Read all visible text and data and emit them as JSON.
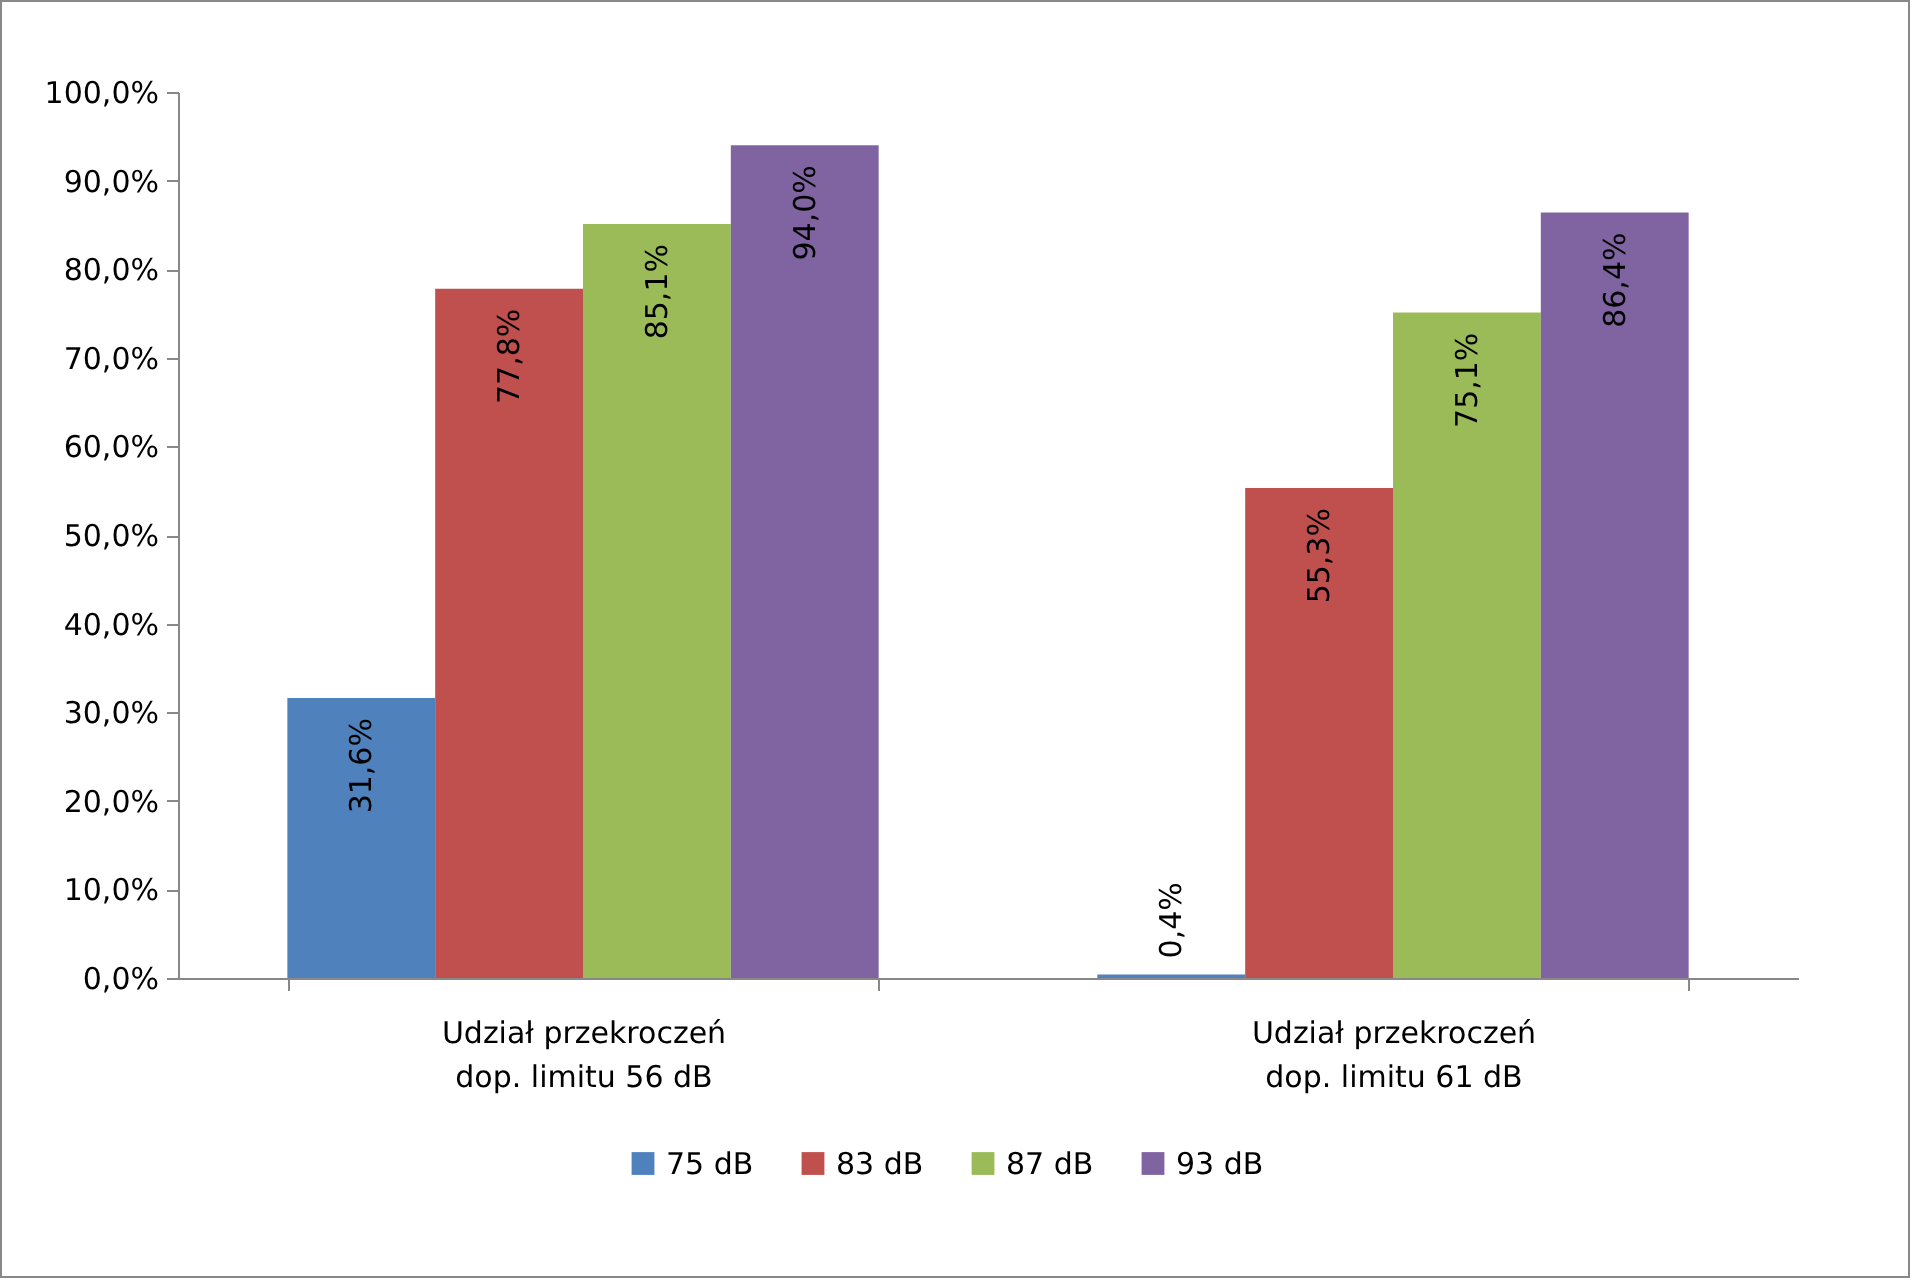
{
  "chart_data": {
    "type": "bar",
    "categories": [
      "Udział przekroczeń\ndop. limitu 56 dB",
      "Udział przekroczeń\ndop. limitu 61 dB"
    ],
    "series": [
      {
        "name": "75 dB",
        "color": "#4f81bd",
        "values": [
          31.6,
          0.4
        ],
        "value_labels": [
          "31,6%",
          "0,4%"
        ]
      },
      {
        "name": "83 dB",
        "color": "#c0504d",
        "values": [
          77.8,
          55.3
        ],
        "value_labels": [
          "77,8%",
          "55,3%"
        ]
      },
      {
        "name": "87 dB",
        "color": "#9bbb59",
        "values": [
          85.1,
          75.1
        ],
        "value_labels": [
          "85,1%",
          "75,1%"
        ]
      },
      {
        "name": "93 dB",
        "color": "#8064a2",
        "values": [
          94.0,
          86.4
        ],
        "value_labels": [
          "94,0%",
          "86,4%"
        ]
      }
    ],
    "ylim": [
      0,
      100
    ],
    "yticks": [
      {
        "value": 0,
        "label": "0,0%"
      },
      {
        "value": 10,
        "label": "10,0%"
      },
      {
        "value": 20,
        "label": "20,0%"
      },
      {
        "value": 30,
        "label": "30,0%"
      },
      {
        "value": 40,
        "label": "40,0%"
      },
      {
        "value": 50,
        "label": "50,0%"
      },
      {
        "value": 60,
        "label": "60,0%"
      },
      {
        "value": 70,
        "label": "70,0%"
      },
      {
        "value": 80,
        "label": "80,0%"
      },
      {
        "value": 90,
        "label": "90,0%"
      },
      {
        "value": 100,
        "label": "100,0%"
      }
    ],
    "grid": false,
    "legend": "bottom"
  }
}
